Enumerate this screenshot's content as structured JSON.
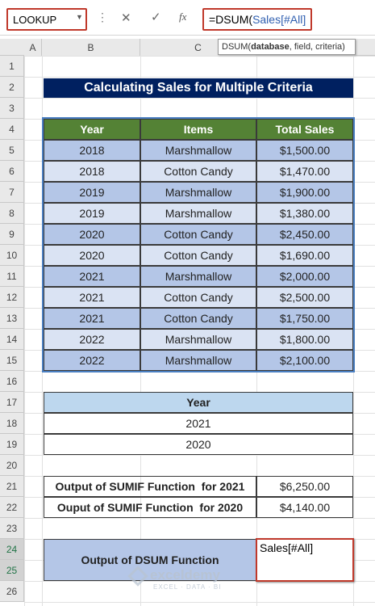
{
  "formula_bar": {
    "name_box": "LOOKUP",
    "formula_prefix": "=DSUM(",
    "formula_arg": "Sales[#All]",
    "tooltip": {
      "function": "DSUM(",
      "arg1": "database",
      "rest": ", field, criteria)"
    }
  },
  "column_headers": [
    "A",
    "B",
    "C"
  ],
  "row_numbers": [
    1,
    2,
    3,
    4,
    5,
    6,
    7,
    8,
    9,
    10,
    11,
    12,
    13,
    14,
    15,
    16,
    17,
    18,
    19,
    20,
    21,
    22,
    23,
    24,
    25,
    26
  ],
  "title": "Calculating Sales for Multiple Criteria",
  "sales_table": {
    "headers": [
      "Year",
      "Items",
      "Total Sales"
    ],
    "rows": [
      [
        "2018",
        "Marshmallow",
        "$1,500.00"
      ],
      [
        "2018",
        "Cotton Candy",
        "$1,470.00"
      ],
      [
        "2019",
        "Marshmallow",
        "$1,900.00"
      ],
      [
        "2019",
        "Marshmallow",
        "$1,380.00"
      ],
      [
        "2020",
        "Cotton Candy",
        "$2,450.00"
      ],
      [
        "2020",
        "Cotton Candy",
        "$1,690.00"
      ],
      [
        "2021",
        "Marshmallow",
        "$2,000.00"
      ],
      [
        "2021",
        "Cotton Candy",
        "$2,500.00"
      ],
      [
        "2021",
        "Cotton Candy",
        "$1,750.00"
      ],
      [
        "2022",
        "Marshmallow",
        "$1,800.00"
      ],
      [
        "2022",
        "Marshmallow",
        "$2,100.00"
      ]
    ]
  },
  "criteria_table": {
    "header": "Year",
    "rows": [
      "2021",
      "2020"
    ]
  },
  "sumif_table": {
    "rows": [
      [
        "Output of SUMIF Function  for 2021",
        "$6,250.00"
      ],
      [
        "Ouput of SUMIF Function  for 2020",
        "$4,140.00"
      ]
    ]
  },
  "dsum": {
    "label": "Output of DSUM Function",
    "cell": "Sales[#All]"
  },
  "watermark": {
    "brand": "exceldemy",
    "tagline": "EXCEL · DATA · BI"
  }
}
